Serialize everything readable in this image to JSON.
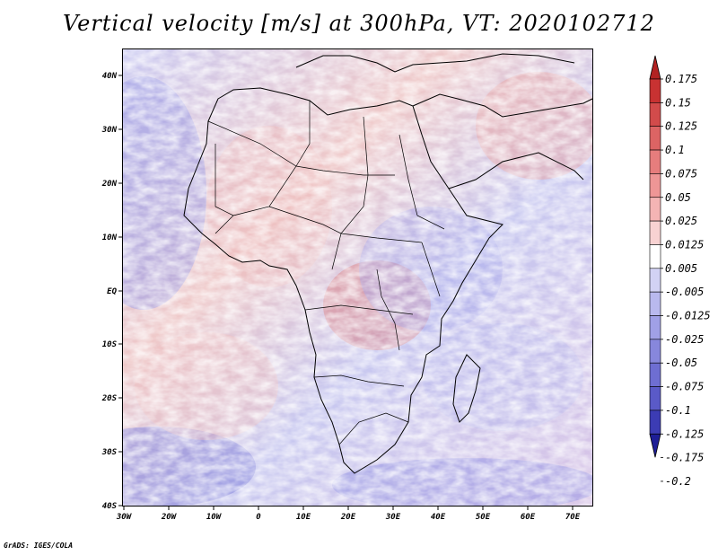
{
  "title": "Vertical velocity [m/s] at 300hPa, VT: 2020102712",
  "footer": "GrADS: IGES/COLA",
  "map": {
    "lat_labels": [
      "40N",
      "30N",
      "20N",
      "10N",
      "EQ",
      "10S",
      "20S",
      "30S",
      "40S"
    ],
    "lon_labels": [
      "30W",
      "20W",
      "10W",
      "0",
      "10E",
      "20E",
      "30E",
      "40E",
      "50E",
      "60E",
      "70E"
    ]
  },
  "colorbar": {
    "labels": [
      "0.175",
      "0.15",
      "0.125",
      "0.1",
      "0.075",
      "0.05",
      "0.025",
      "0.0125",
      "0.005",
      "-0.005",
      "-0.0125",
      "-0.025",
      "-0.05",
      "-0.075",
      "-0.1",
      "-0.125",
      "-0.175",
      "-0.2"
    ],
    "colors": [
      "#b22222",
      "#c83232",
      "#d24b4b",
      "#dc6464",
      "#e67d7d",
      "#ee9696",
      "#f4b4b4",
      "#f8d2d2",
      "#ffffff",
      "#d2d2f4",
      "#b9b9ee",
      "#a0a0e6",
      "#8787dc",
      "#6e6ed2",
      "#5a5ac8",
      "#3c3cb4",
      "#1e1e96"
    ]
  }
}
